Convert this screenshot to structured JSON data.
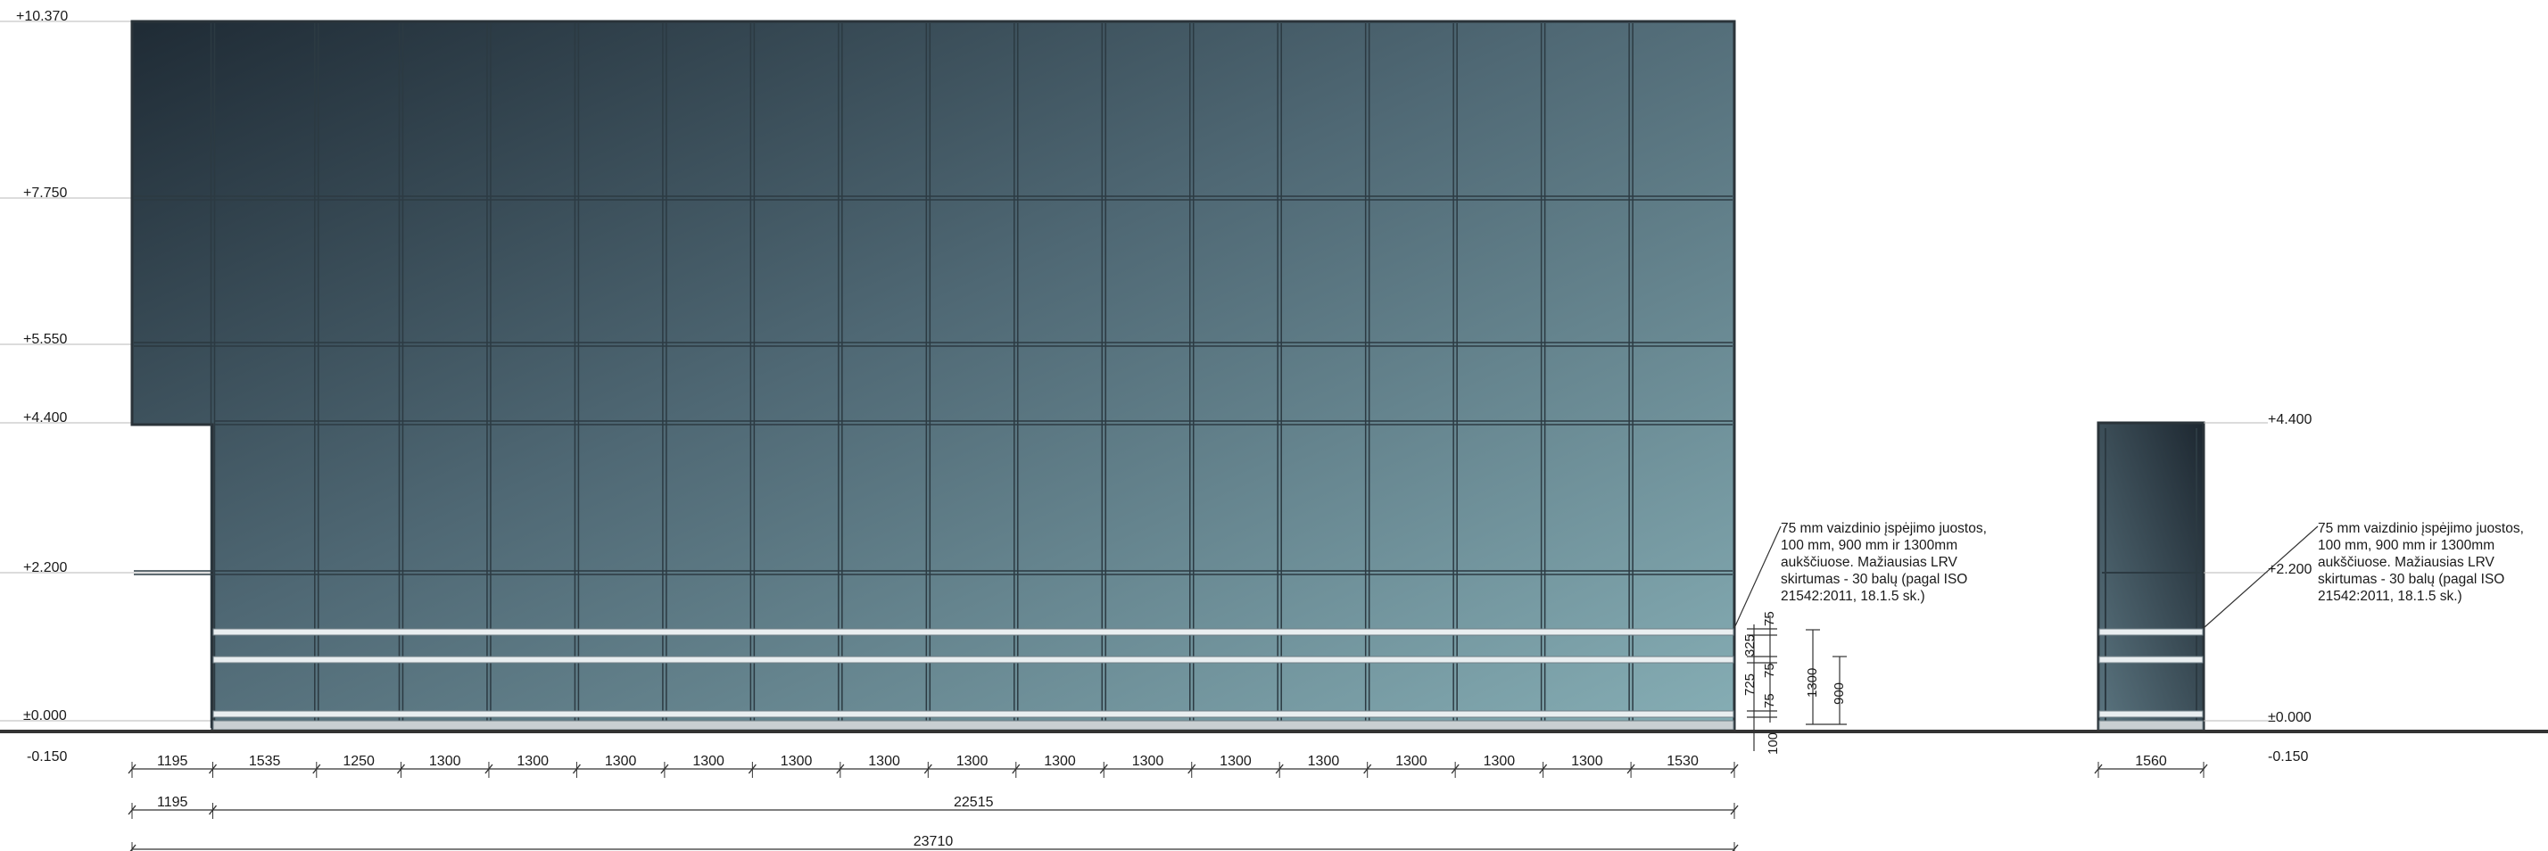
{
  "levels_left": {
    "l10370": "+10.370",
    "l7750": "+7.750",
    "l5550": "+5.550",
    "l4400": "+4.400",
    "l2200": "+2.200",
    "l0000": "±0.000",
    "lm150": "-0.150"
  },
  "levels_right": {
    "l4400": "+4.400",
    "l2200": "+2.200",
    "l0000": "±0.000",
    "lm150": "-0.150"
  },
  "dims_row1": [
    "1195",
    "1535",
    "1250",
    "1300",
    "1300",
    "1300",
    "1300",
    "1300",
    "1300",
    "1300",
    "1300",
    "1300",
    "1300",
    "1300",
    "1300",
    "1300",
    "1300",
    "1530"
  ],
  "dims_row2": [
    "1195",
    "22515"
  ],
  "dims_row3": [
    "23710"
  ],
  "dim_small": "1560",
  "vertical_dims": {
    "d75_top": "75",
    "d325": "325",
    "d725": "725",
    "d75_mid": "75",
    "d75_low": "75",
    "d100": "100",
    "d1300": "1300",
    "d900": "900"
  },
  "note_lines": [
    "75 mm vaizdinio įspėjimo juostos,",
    "100 mm, 900 mm ir 1300mm",
    "aukščiuose. Mažiausias LRV",
    "skirtumas - 30 balų (pagal ISO",
    "21542:2011, 18.1.5 sk.)"
  ],
  "colors": {
    "glass_dark": "#1f2b35",
    "glass_mid": "#4d6571",
    "glass_light": "#7fa6ad",
    "mullion": "#2c3a42",
    "stripe": "#e9eef0",
    "ground": "#333333"
  }
}
